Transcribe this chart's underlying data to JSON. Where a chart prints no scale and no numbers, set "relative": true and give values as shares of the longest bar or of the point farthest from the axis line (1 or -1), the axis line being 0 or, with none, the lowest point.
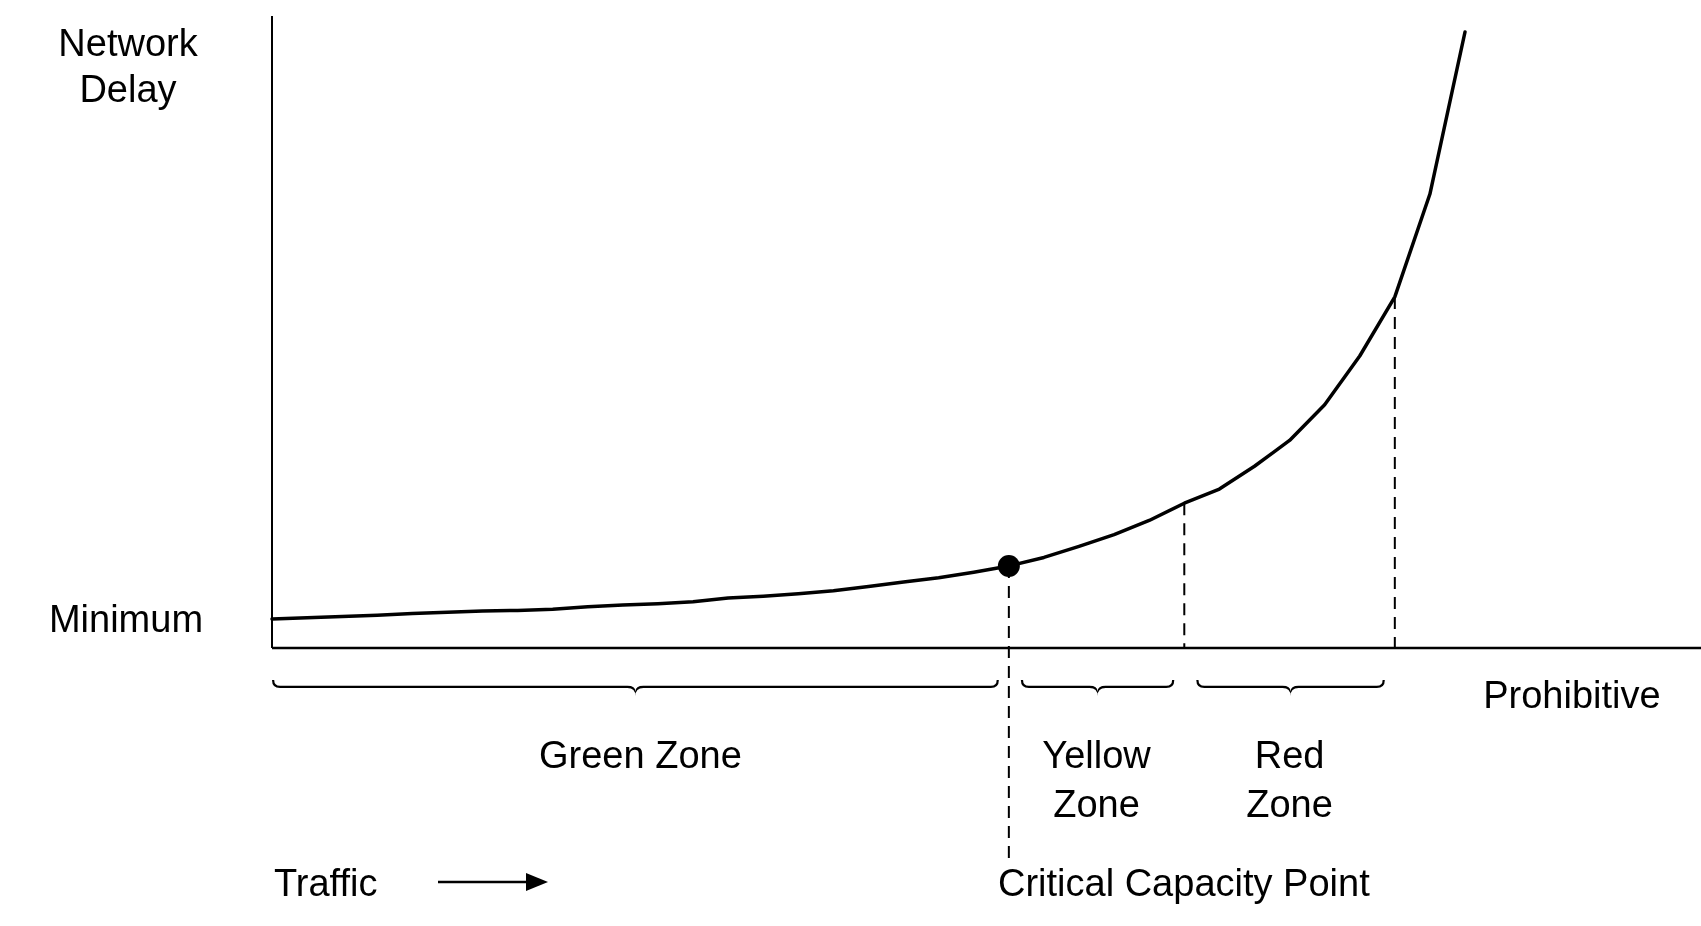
{
  "chart_data": {
    "type": "line",
    "relative": true,
    "ylabel": "Network Delay",
    "categories": [
      null,
      null,
      null,
      null,
      null,
      null,
      null,
      null,
      null,
      null,
      null,
      null,
      null,
      null,
      null,
      null,
      null,
      null,
      null,
      null,
      null,
      null,
      null,
      null,
      null,
      null,
      null,
      null,
      null,
      null,
      null,
      null,
      null,
      null,
      null
    ],
    "series": [
      {
        "color": "#000000",
        "values": [
          0.047,
          0.049,
          0.051,
          0.053,
          0.056,
          0.058,
          0.06,
          0.061,
          0.063,
          0.067,
          0.07,
          0.072,
          0.075,
          0.081,
          0.084,
          0.088,
          0.093,
          0.1,
          0.107,
          0.114,
          0.123,
          0.133,
          0.147,
          0.165,
          0.184,
          0.207,
          0.235,
          0.258,
          0.295,
          0.337,
          0.395,
          0.474,
          0.57,
          0.737,
          1
        ]
      }
    ],
    "annotations": [
      "Minimum",
      "Green Zone",
      "Yellow Zone",
      "Red Zone",
      "Prohibitive",
      "Critical Capacity Point",
      "Traffic"
    ]
  }
}
